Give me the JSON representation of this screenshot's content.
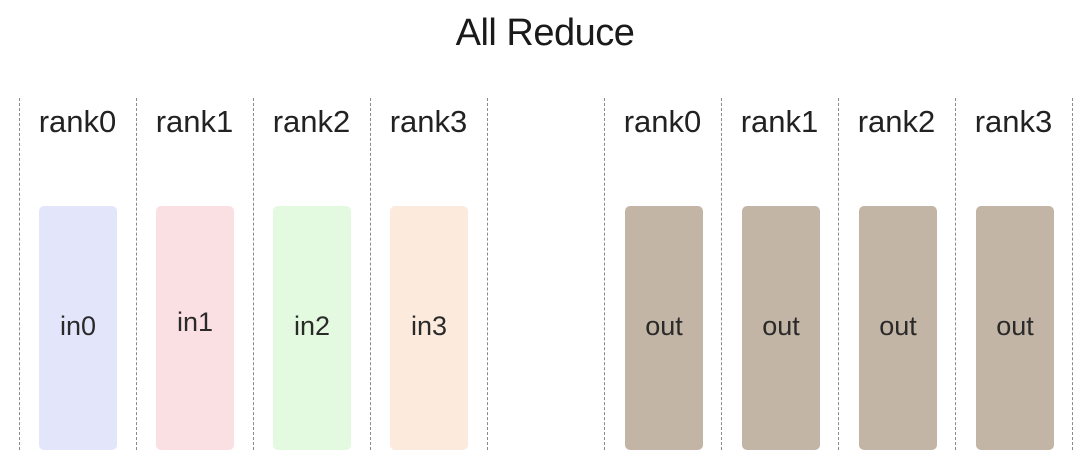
{
  "title": "All Reduce",
  "input_group": {
    "ranks": [
      {
        "rank": "rank0",
        "block": "in0",
        "color": "#e3e6fb"
      },
      {
        "rank": "rank1",
        "block": "in1",
        "color": "#fbe0e3"
      },
      {
        "rank": "rank2",
        "block": "in2",
        "color": "#e3fae0"
      },
      {
        "rank": "rank3",
        "block": "in3",
        "color": "#fcebdd"
      }
    ]
  },
  "output_group": {
    "ranks": [
      {
        "rank": "rank0",
        "block": "out",
        "color": "#c3b5a6"
      },
      {
        "rank": "rank1",
        "block": "out",
        "color": "#c3b5a6"
      },
      {
        "rank": "rank2",
        "block": "out",
        "color": "#c3b5a6"
      },
      {
        "rank": "rank3",
        "block": "out",
        "color": "#c3b5a6"
      }
    ]
  }
}
